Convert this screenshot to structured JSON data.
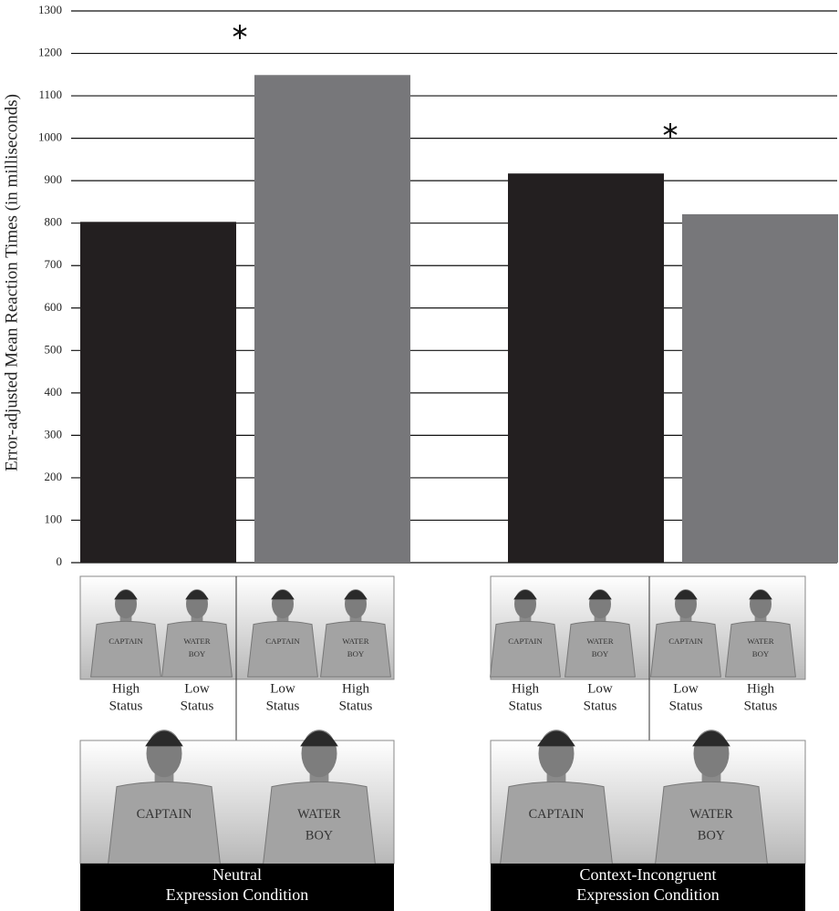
{
  "chart_data": {
    "type": "bar",
    "ylabel": "Error-adjusted Mean Reaction Times (in milliseconds)",
    "categories": [
      [
        "Neutral",
        "Expression Condition"
      ],
      [
        "Context-Incongruent",
        "Expression Condition"
      ]
    ],
    "series": [
      {
        "color": "#231f20",
        "values": [
          803,
          917
        ]
      },
      {
        "color": "#77777a",
        "values": [
          1149,
          821
        ]
      }
    ],
    "ylim": [
      0,
      1300
    ],
    "yticks": [
      0,
      100,
      200,
      300,
      400,
      500,
      600,
      700,
      800,
      900,
      1000,
      1100,
      1200,
      1300
    ],
    "grid": true,
    "status_labels": [
      [
        [
          "High",
          "Status"
        ],
        [
          "Low",
          "Status"
        ]
      ],
      [
        [
          "Low",
          "Status"
        ],
        [
          "High",
          "Status"
        ]
      ]
    ],
    "shirt_texts": [
      [
        "CAPTAIN"
      ],
      [
        "WATER",
        "BOY"
      ]
    ]
  }
}
